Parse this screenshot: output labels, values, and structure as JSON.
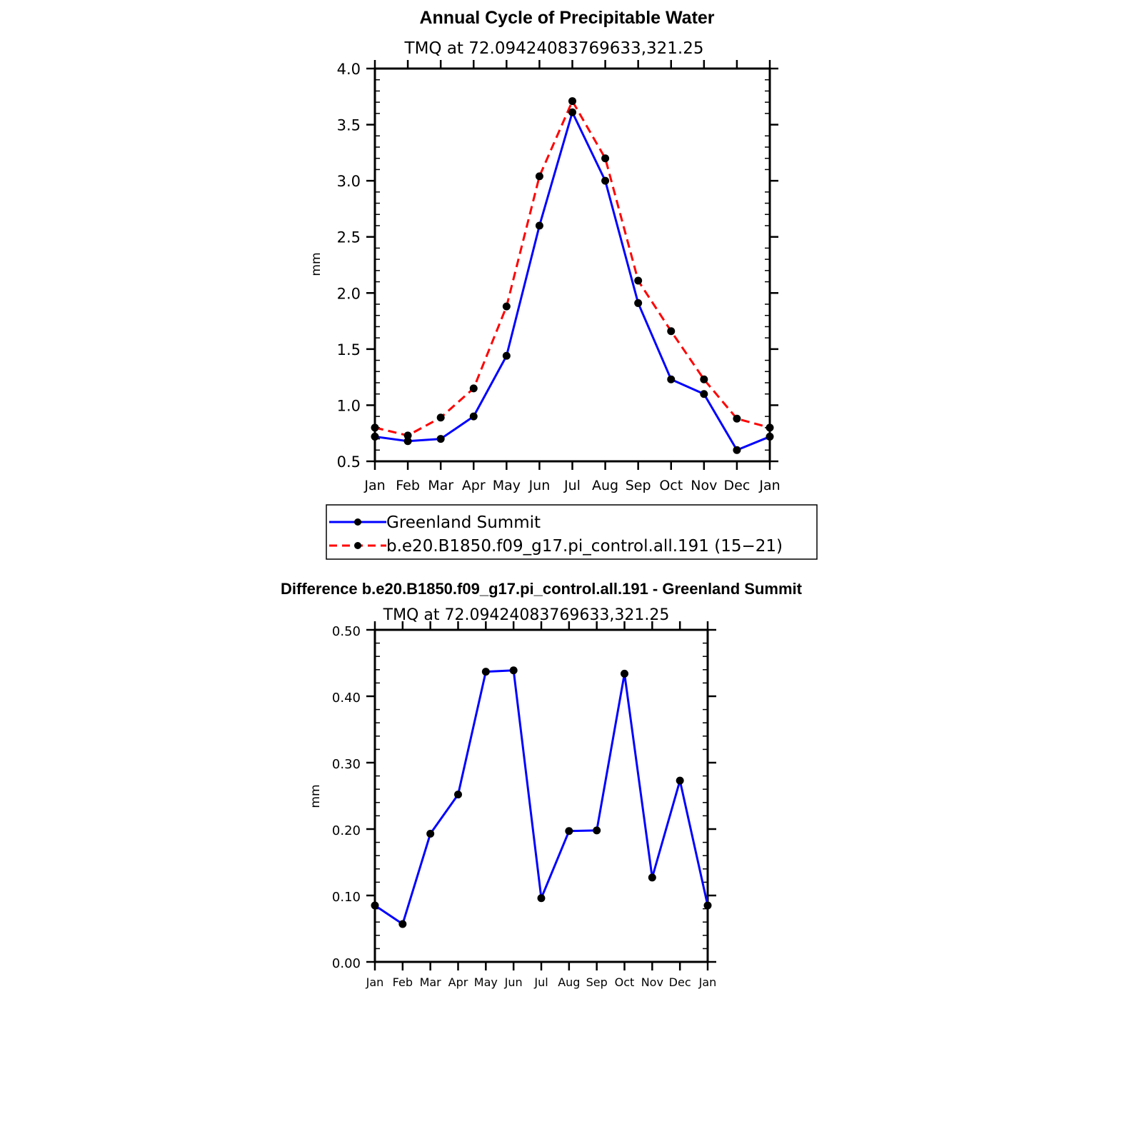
{
  "chart_data": [
    {
      "type": "line",
      "title": "Annual Cycle of Precipitable Water",
      "subtitle": "TMQ at 72.09424083769633,321.25",
      "xlabel": "",
      "ylabel": "mm",
      "categories": [
        "Jan",
        "Feb",
        "Mar",
        "Apr",
        "May",
        "Jun",
        "Jul",
        "Aug",
        "Sep",
        "Oct",
        "Nov",
        "Dec",
        "Jan"
      ],
      "ylim": [
        0.5,
        4.0
      ],
      "yticks": [
        "0.5",
        "1.0",
        "1.5",
        "2.0",
        "2.5",
        "3.0",
        "3.5",
        "4.0"
      ],
      "grid": false,
      "legend_position": "bottom",
      "series": [
        {
          "name": "Greenland Summit",
          "color": "#0000ff",
          "dash": "solid",
          "values": [
            0.72,
            0.68,
            0.7,
            0.9,
            1.44,
            2.6,
            3.61,
            3.0,
            1.91,
            1.23,
            1.1,
            0.6,
            0.72
          ]
        },
        {
          "name": "b.e20.B1850.f09_g17.pi_control.all.191 (15−21)",
          "color": "#ff0000",
          "dash": "dashed",
          "values": [
            0.8,
            0.73,
            0.89,
            1.15,
            1.88,
            3.04,
            3.71,
            3.2,
            2.11,
            1.66,
            1.23,
            0.88,
            0.8
          ]
        }
      ]
    },
    {
      "type": "line",
      "title": "Difference b.e20.B1850.f09_g17.pi_control.all.191 - Greenland Summit",
      "subtitle": "TMQ at 72.09424083769633,321.25",
      "xlabel": "",
      "ylabel": "mm",
      "categories": [
        "Jan",
        "Feb",
        "Mar",
        "Apr",
        "May",
        "Jun",
        "Jul",
        "Aug",
        "Sep",
        "Oct",
        "Nov",
        "Dec",
        "Jan"
      ],
      "ylim": [
        0.0,
        0.5
      ],
      "yticks": [
        "0.00",
        "0.10",
        "0.20",
        "0.30",
        "0.40",
        "0.50"
      ],
      "grid": false,
      "series": [
        {
          "name": "Difference",
          "color": "#0000ff",
          "dash": "solid",
          "values": [
            0.085,
            0.057,
            0.193,
            0.252,
            0.437,
            0.439,
            0.096,
            0.197,
            0.198,
            0.434,
            0.127,
            0.273,
            0.085
          ]
        }
      ]
    }
  ]
}
